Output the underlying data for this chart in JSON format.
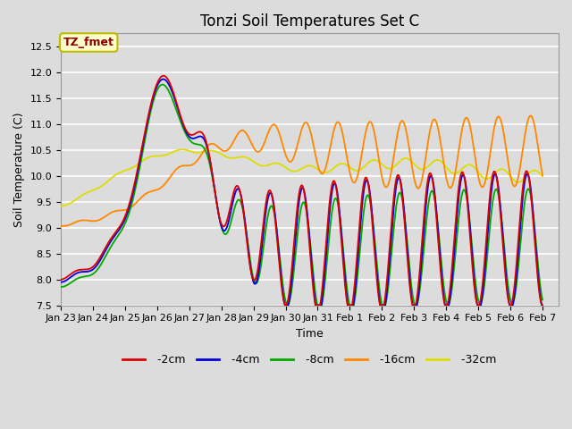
{
  "title": "Tonzi Soil Temperatures Set C",
  "xlabel": "Time",
  "ylabel": "Soil Temperature (C)",
  "ylim": [
    7.5,
    12.75
  ],
  "xlim": [
    0,
    15.5
  ],
  "tick_labels": [
    "Jan 23",
    "Jan 24",
    "Jan 25",
    "Jan 26",
    "Jan 27",
    "Jan 28",
    "Jan 29",
    "Jan 30",
    "Jan 31",
    "Feb 1",
    "Feb 2",
    "Feb 3",
    "Feb 4",
    "Feb 5",
    "Feb 6",
    "Feb 7"
  ],
  "colors": {
    "-2cm": "#dd0000",
    "-4cm": "#0000dd",
    "-8cm": "#00aa00",
    "-16cm": "#ff8800",
    "-32cm": "#dddd00"
  },
  "annotation_text": "TZ_fmet",
  "annotation_bg": "#ffffcc",
  "annotation_border": "#bbbb00",
  "bg_color": "#dcdcdc",
  "grid_color": "#ffffff",
  "title_fontsize": 12,
  "axis_fontsize": 9,
  "tick_fontsize": 8
}
